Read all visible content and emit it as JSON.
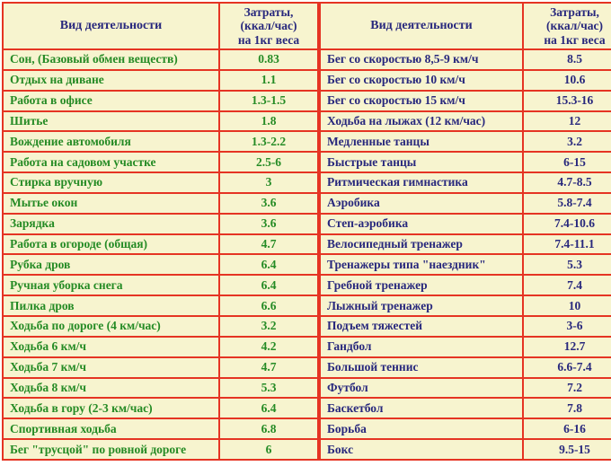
{
  "colors": {
    "grid_red": "#e53423",
    "cell_cream": "#f7f4cf",
    "left_text_green": "#258b25",
    "right_text_navy": "#28287d",
    "header_navy": "#28287d",
    "page_background": "#ffffff"
  },
  "chart_data": {
    "type": "table",
    "tables": [
      {
        "header": {
          "activity": "Вид деятельности",
          "cost": "Затраты,\n(ккал/час)\nна 1кг веса"
        },
        "rows": [
          {
            "activity": "Сон, (Базовый обмен веществ)",
            "value": "0.83"
          },
          {
            "activity": "Отдых на диване",
            "value": "1.1"
          },
          {
            "activity": "Работа в офисе",
            "value": "1.3-1.5"
          },
          {
            "activity": "Шитье",
            "value": "1.8"
          },
          {
            "activity": "Вождение автомобиля",
            "value": "1.3-2.2"
          },
          {
            "activity": "Работа на садовом участке",
            "value": "2.5-6"
          },
          {
            "activity": "Стирка вручную",
            "value": "3"
          },
          {
            "activity": "Мытье окон",
            "value": "3.6"
          },
          {
            "activity": "Зарядка",
            "value": "3.6"
          },
          {
            "activity": "Работа в огороде (общая)",
            "value": "4.7"
          },
          {
            "activity": "Рубка дров",
            "value": "6.4"
          },
          {
            "activity": "Ручная уборка снега",
            "value": "6.4"
          },
          {
            "activity": "Пилка дров",
            "value": "6.6"
          },
          {
            "activity": "Ходьба по дороге (4 км/час)",
            "value": "3.2"
          },
          {
            "activity": "Ходьба 6 км/ч",
            "value": "4.2"
          },
          {
            "activity": "Ходьба 7 км/ч",
            "value": "4.7"
          },
          {
            "activity": "Ходьба 8 км/ч",
            "value": "5.3"
          },
          {
            "activity": "Ходьба в гору (2-3 км/час)",
            "value": "6.4"
          },
          {
            "activity": "Спортивная ходьба",
            "value": "6.8"
          },
          {
            "activity": "Бег \"трусцой\" по ровной дороге",
            "value": "6"
          }
        ]
      },
      {
        "header": {
          "activity": "Вид деятельности",
          "cost": "Затраты,\n(ккал/час)\nна 1кг веса"
        },
        "rows": [
          {
            "activity": "Бег со скоростью 8,5-9 км/ч",
            "value": "8.5"
          },
          {
            "activity": "Бег со скоростью 10 км/ч",
            "value": "10.6"
          },
          {
            "activity": "Бег со скоростью 15 км/ч",
            "value": "15.3-16"
          },
          {
            "activity": "Ходьба на лыжах (12 км/час)",
            "value": "12"
          },
          {
            "activity": "Медленные танцы",
            "value": "3.2"
          },
          {
            "activity": "Быстрые танцы",
            "value": "6-15"
          },
          {
            "activity": "Ритмическая гимнастика",
            "value": "4.7-8.5"
          },
          {
            "activity": "Аэробика",
            "value": "5.8-7.4"
          },
          {
            "activity": "Степ-аэробика",
            "value": "7.4-10.6"
          },
          {
            "activity": "Велосипедный тренажер",
            "value": "7.4-11.1"
          },
          {
            "activity": "Тренажеры типа \"наездник\"",
            "value": "5.3"
          },
          {
            "activity": "Гребной тренажер",
            "value": "7.4"
          },
          {
            "activity": "Лыжный тренажер",
            "value": "10"
          },
          {
            "activity": "Подъем тяжестей",
            "value": "3-6"
          },
          {
            "activity": "Гандбол",
            "value": "12.7"
          },
          {
            "activity": "Большой теннис",
            "value": "6.6-7.4"
          },
          {
            "activity": "Футбол",
            "value": "7.2"
          },
          {
            "activity": "Баскетбол",
            "value": "7.8"
          },
          {
            "activity": "Борьба",
            "value": "6-16"
          },
          {
            "activity": "Бокс",
            "value": "9.5-15"
          }
        ]
      }
    ]
  }
}
